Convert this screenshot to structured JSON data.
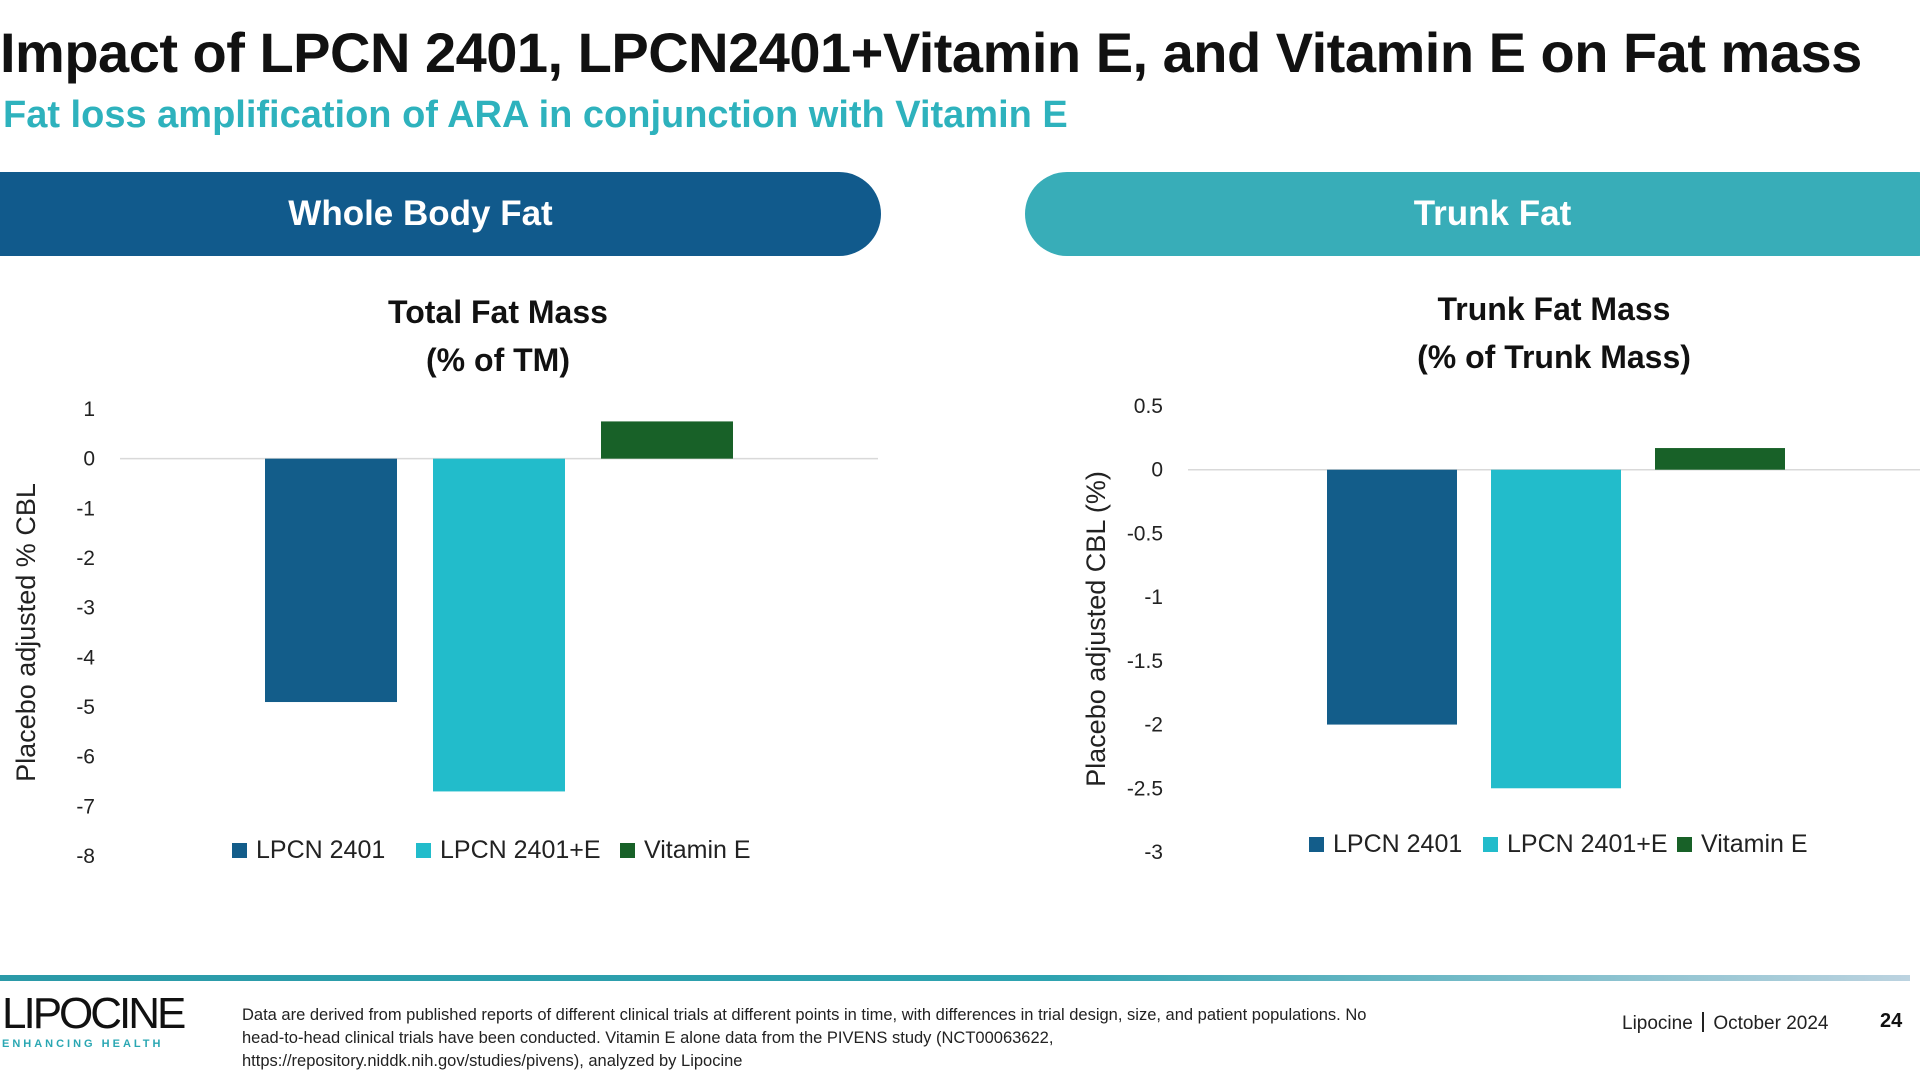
{
  "slide": {
    "title": "Impact of LPCN 2401, LPCN2401+Vitamin E, and Vitamin E on Fat mass",
    "subtitle": "Fat loss amplification of ARA in conjunction with Vitamin E",
    "pills": {
      "left": "Whole Body Fat",
      "right": "Trunk Fat"
    },
    "footnote": {
      "line1": "Data are derived from published reports of different clinical trials at different points in time, with differences in trial design, size, and patient populations. No",
      "line2": "head-to-head clinical trials have been conducted. Vitamin E alone data from the PIVENS study (NCT00063622,",
      "line3": "https://repository.niddk.nih.gov/studies/pivens), analyzed by Lipocine"
    },
    "company": "Lipocine",
    "date": "October 2024",
    "page_number": "24",
    "logo": {
      "word": "LIPOCINE",
      "tagline": "ENHANCING HEALTH"
    }
  },
  "colors": {
    "dark_blue": "#115a8c",
    "teal": "#38adb8",
    "subtitle_teal": "#2eb2bd",
    "bar_lpcn2401": "#135d8a",
    "bar_lpcn2401e": "#22bccb",
    "bar_vitamin_e": "#186128"
  },
  "chart_data": [
    {
      "type": "bar",
      "title": "Total Fat Mass",
      "title_line2": "(% of TM)",
      "ylabel": "Placebo adjusted % CBL",
      "xlabel": "",
      "ylim": [
        -8,
        1
      ],
      "yticks": [
        "1",
        "0",
        "-1",
        "-2",
        "-3",
        "-4",
        "-5",
        "-6",
        "-7",
        "-8"
      ],
      "legend_position": "bottom",
      "series": [
        {
          "name": "LPCN 2401",
          "values": [
            -4.9
          ]
        },
        {
          "name": "LPCN 2401+E",
          "values": [
            -6.7
          ]
        },
        {
          "name": "Vitamin E",
          "values": [
            0.75
          ]
        }
      ]
    },
    {
      "type": "bar",
      "title": "Trunk Fat Mass",
      "title_line2": "(% of Trunk Mass)",
      "ylabel": "Placebo adjusted CBL (%)",
      "xlabel": "",
      "ylim": [
        -3,
        0.5
      ],
      "yticks": [
        "0.5",
        "0",
        "-0.5",
        "-1",
        "-1.5",
        "-2",
        "-2.5",
        "-3"
      ],
      "legend_position": "bottom",
      "series": [
        {
          "name": "LPCN 2401",
          "values": [
            -2.0
          ]
        },
        {
          "name": "LPCN 2401+E",
          "values": [
            -2.5
          ]
        },
        {
          "name": "Vitamin E",
          "values": [
            0.17
          ]
        }
      ]
    }
  ]
}
